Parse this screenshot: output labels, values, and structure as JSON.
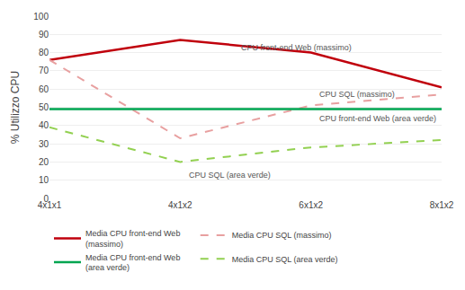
{
  "chart_data": {
    "type": "line",
    "categories": [
      "4x1x1",
      "4x1x2",
      "6x1x2",
      "8x1x2"
    ],
    "series": [
      {
        "name": "Media CPU front-end Web\n(massimo)",
        "color": "#c0000c",
        "line_style": "solid",
        "values": [
          76,
          87,
          80,
          61
        ]
      },
      {
        "name": "Media CPU SQL (massimo)",
        "color": "#e8a0a0",
        "line_style": "dashed",
        "values": [
          76,
          33,
          51,
          57
        ]
      },
      {
        "name": "Media CPU front-end Web\n(area verde)",
        "color": "#00a550",
        "line_style": "solid",
        "values": [
          49,
          49,
          49,
          49
        ]
      },
      {
        "name": "Media CPU SQL (area verde)",
        "color": "#92d050",
        "line_style": "dashed",
        "values": [
          39,
          20,
          28,
          32
        ]
      }
    ],
    "annotations": [
      {
        "text": "CPU front-end Web (massimo)",
        "x": 1.45,
        "y": 83
      },
      {
        "text": "CPU SQL (massimo)",
        "x": 2.05,
        "y": 57
      },
      {
        "text": "CPU front-end Web (area verde)",
        "x": 2.05,
        "y": 44
      },
      {
        "text": "CPU SQL (area verde)",
        "x": 1.05,
        "y": 13
      }
    ],
    "ylabel": "% Utilizzo CPU",
    "ylim": [
      0,
      100
    ],
    "yticks": [
      0,
      10,
      20,
      30,
      40,
      50,
      60,
      70,
      80,
      90,
      100
    ],
    "grid": true,
    "legend": "bottom"
  }
}
